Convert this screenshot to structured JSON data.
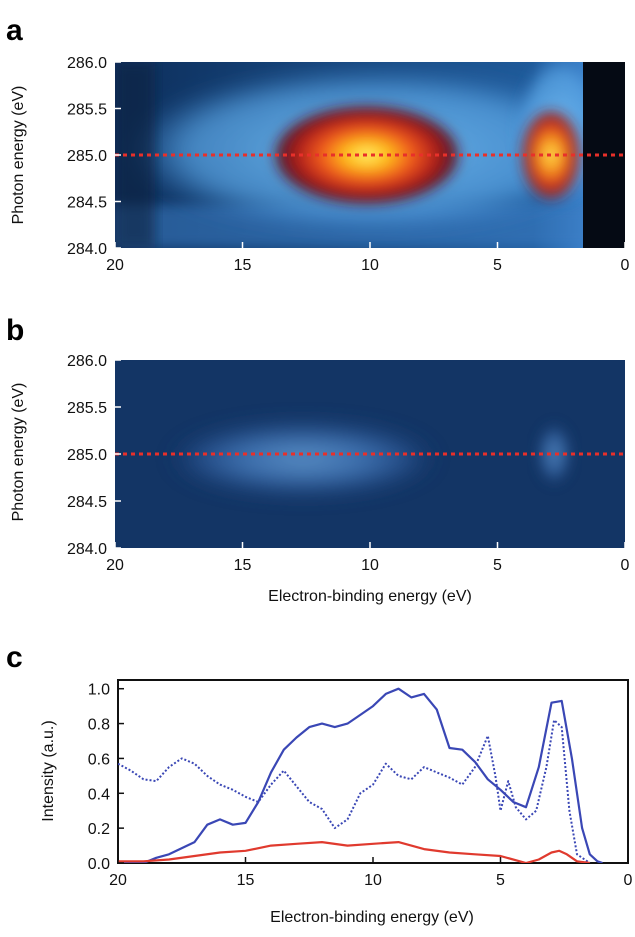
{
  "chart_data": [
    {
      "panel": "a",
      "type": "heatmap",
      "xlabel": "",
      "ylabel": "Photon energy (eV)",
      "xlim": [
        20,
        0
      ],
      "ylim": [
        284.0,
        286.0
      ],
      "x_ticks": [
        "20",
        "15",
        "10",
        "5",
        "0"
      ],
      "y_ticks": [
        "286.0",
        "285.5",
        "285.0",
        "284.5",
        "284.0"
      ],
      "reference_line_y": 285.0,
      "features": [
        {
          "x_range": [
            14.5,
            7
          ],
          "y_range": [
            284.5,
            285.6
          ],
          "peak_x": 9.5,
          "peak_y": 285.0,
          "intensity": 1.0
        },
        {
          "x_range": [
            4.2,
            1.8
          ],
          "y_range": [
            284.6,
            285.6
          ],
          "peak_x": 2.8,
          "peak_y": 285.0,
          "intensity": 0.95
        }
      ]
    },
    {
      "panel": "b",
      "type": "heatmap",
      "xlabel": "Electron-binding energy (eV)",
      "ylabel": "Photon energy (eV)",
      "xlim": [
        20,
        0
      ],
      "ylim": [
        284.0,
        286.0
      ],
      "x_ticks": [
        "20",
        "15",
        "10",
        "5",
        "0"
      ],
      "y_ticks": [
        "286.0",
        "285.5",
        "285.0",
        "284.5",
        "284.0"
      ],
      "reference_line_y": 285.0,
      "features": [
        {
          "x_range": [
            18,
            7.5
          ],
          "y_range": [
            284.6,
            285.4
          ],
          "peak_x": 12.5,
          "peak_y": 284.95,
          "intensity": 0.55
        },
        {
          "x_range": [
            3.5,
            2.0
          ],
          "y_range": [
            284.7,
            285.4
          ],
          "peak_x": 2.8,
          "peak_y": 285.0,
          "intensity": 0.45
        }
      ]
    },
    {
      "panel": "c",
      "type": "line",
      "xlabel": "Electron-binding energy (eV)",
      "ylabel": "Intensity (a.u.)",
      "xlim": [
        20,
        0
      ],
      "ylim": [
        0.0,
        1.05
      ],
      "x_ticks": [
        "20",
        "15",
        "10",
        "5",
        "0"
      ],
      "y_ticks": [
        "0.0",
        "0.2",
        "0.4",
        "0.6",
        "0.8",
        "1.0"
      ],
      "series": [
        {
          "style": "solid",
          "color": "#3a47b5",
          "x": [
            20,
            19,
            18.5,
            18,
            17,
            16.5,
            16,
            15.5,
            15,
            14.5,
            14,
            13.5,
            13,
            12.5,
            12,
            11.5,
            11,
            10.5,
            10,
            9.5,
            9,
            8.5,
            8,
            7.5,
            7,
            6.5,
            6,
            5.5,
            5,
            4.5,
            4,
            3.5,
            3,
            2.6,
            2.2,
            1.8,
            1.5,
            1.2,
            1
          ],
          "y": [
            0.0,
            0.0,
            0.03,
            0.05,
            0.12,
            0.22,
            0.25,
            0.22,
            0.23,
            0.35,
            0.52,
            0.65,
            0.72,
            0.78,
            0.8,
            0.78,
            0.8,
            0.85,
            0.9,
            0.97,
            1.0,
            0.95,
            0.97,
            0.88,
            0.66,
            0.65,
            0.58,
            0.48,
            0.42,
            0.35,
            0.32,
            0.55,
            0.92,
            0.93,
            0.6,
            0.2,
            0.05,
            0.01,
            0.0
          ]
        },
        {
          "style": "dotted",
          "color": "#3a47b5",
          "x": [
            20,
            19.5,
            19,
            18.5,
            18,
            17.5,
            17,
            16.5,
            16,
            15.5,
            15,
            14.5,
            14,
            13.5,
            13,
            12.5,
            12,
            11.5,
            11,
            10.5,
            10,
            9.5,
            9,
            8.5,
            8,
            7.5,
            7,
            6.5,
            6,
            5.5,
            5.2,
            5,
            4.7,
            4.4,
            4,
            3.6,
            3.2,
            2.9,
            2.6,
            2.3,
            2.0,
            1.5
          ],
          "y": [
            0.57,
            0.53,
            0.48,
            0.47,
            0.55,
            0.6,
            0.57,
            0.5,
            0.45,
            0.42,
            0.38,
            0.35,
            0.45,
            0.53,
            0.44,
            0.35,
            0.31,
            0.2,
            0.25,
            0.4,
            0.45,
            0.57,
            0.5,
            0.48,
            0.55,
            0.52,
            0.49,
            0.45,
            0.55,
            0.73,
            0.5,
            0.3,
            0.47,
            0.32,
            0.25,
            0.3,
            0.55,
            0.82,
            0.78,
            0.3,
            0.05,
            0.0
          ]
        },
        {
          "style": "solid",
          "color": "#e03a2e",
          "x": [
            20,
            19,
            18,
            17,
            16,
            15,
            14,
            13,
            12,
            11,
            10,
            9,
            8,
            7,
            6,
            5,
            4,
            3.5,
            3,
            2.7,
            2.4,
            2,
            1.5
          ],
          "y": [
            0.01,
            0.01,
            0.02,
            0.04,
            0.06,
            0.07,
            0.1,
            0.11,
            0.12,
            0.1,
            0.11,
            0.12,
            0.08,
            0.06,
            0.05,
            0.04,
            0.0,
            0.02,
            0.06,
            0.07,
            0.05,
            0.01,
            0.0
          ]
        }
      ]
    }
  ]
}
